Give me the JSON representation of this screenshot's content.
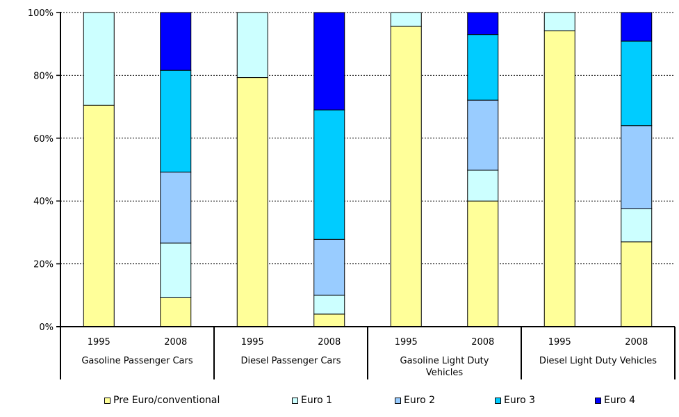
{
  "chart_data": {
    "type": "bar",
    "stacked": true,
    "percent": true,
    "title": "",
    "xlabel": "",
    "ylabel": "",
    "ylim": [
      0,
      100
    ],
    "y_ticks": [
      "0%",
      "20%",
      "40%",
      "60%",
      "80%",
      "100%"
    ],
    "y_tick_values": [
      0,
      20,
      40,
      60,
      80,
      100
    ],
    "grid": true,
    "legend_position": "bottom",
    "groups": [
      {
        "label": "Gasoline Passenger Cars",
        "label_lines": [
          "Gasoline Passenger Cars"
        ],
        "categories": [
          "1995",
          "2008"
        ]
      },
      {
        "label": "Diesel Passenger Cars",
        "label_lines": [
          "Diesel Passenger Cars"
        ],
        "categories": [
          "1995",
          "2008"
        ]
      },
      {
        "label": "Gasoline Light Duty Vehicles",
        "label_lines": [
          "Gasoline Light Duty",
          "Vehicles"
        ],
        "categories": [
          "1995",
          "2008"
        ]
      },
      {
        "label": "Diesel Light Duty Vehicles",
        "label_lines": [
          "Diesel Light Duty Vehicles"
        ],
        "categories": [
          "1995",
          "2008"
        ]
      }
    ],
    "categories": [
      "1995",
      "2008",
      "1995",
      "2008",
      "1995",
      "2008",
      "1995",
      "2008"
    ],
    "series": [
      {
        "name": "Pre Euro/conventional",
        "color": "#ffff99",
        "values": [
          70.5,
          9.2,
          79.3,
          4.0,
          95.6,
          40.0,
          94.2,
          27.0
        ]
      },
      {
        "name": "Euro 1",
        "color": "#ccffff",
        "values": [
          29.5,
          17.4,
          20.7,
          6.0,
          4.4,
          9.8,
          5.8,
          10.5
        ]
      },
      {
        "name": "Euro 2",
        "color": "#99ccff",
        "values": [
          0,
          22.6,
          0,
          17.8,
          0,
          22.3,
          0,
          26.5
        ]
      },
      {
        "name": "Euro 3",
        "color": "#00ccff",
        "values": [
          0,
          32.4,
          0,
          41.2,
          0,
          20.9,
          0,
          26.9
        ]
      },
      {
        "name": "Euro 4",
        "color": "#0000ff",
        "values": [
          0,
          18.4,
          0,
          31.0,
          0,
          7.0,
          0,
          9.1
        ]
      }
    ]
  }
}
